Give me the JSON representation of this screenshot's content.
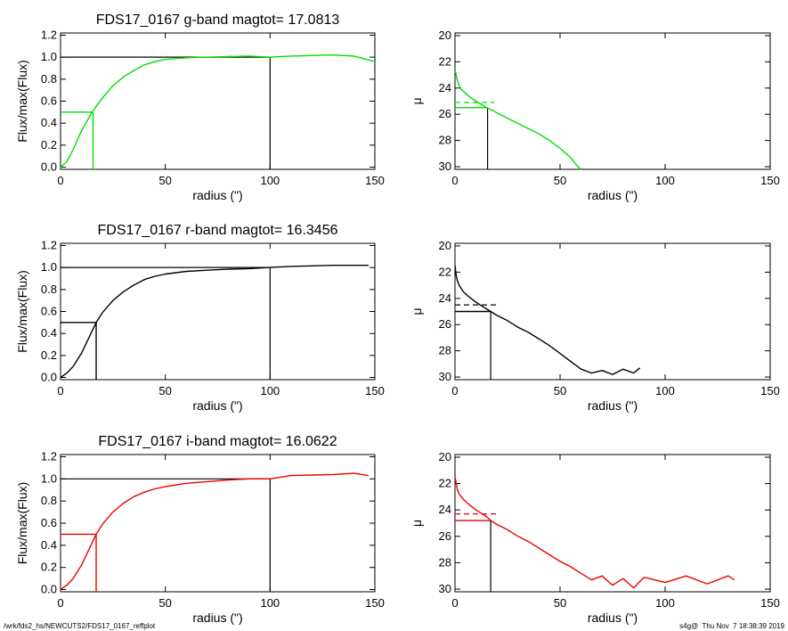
{
  "footer": {
    "path": "/wrk/fds2_hs/NEWCUTS2/FDS17_0167_reffplot",
    "stamp": "s4g@  Thu Nov  7 18:38:39 2019"
  },
  "colors": {
    "g": "#00e000",
    "r": "#000000",
    "i": "#ee0000"
  },
  "chart_data": [
    {
      "type": "line",
      "band": "g",
      "title": "FDS17_0167 g-band  magtot=     17.0813",
      "xlabel": "radius (\")",
      "ylabel": "Flux/max(Flux)",
      "xlim": [
        0,
        150
      ],
      "ylim": [
        -0.02,
        1.22
      ],
      "xticks": [
        0,
        50,
        100,
        150
      ],
      "yticks": [
        "0.0",
        "0.2",
        "0.4",
        "0.6",
        "0.8",
        "1.0",
        "1.2"
      ],
      "series": [
        {
          "x": [
            0,
            3,
            6,
            10,
            15,
            20,
            25,
            30,
            35,
            40,
            45,
            50,
            60,
            70,
            80,
            90,
            100,
            110,
            120,
            130,
            140,
            150
          ],
          "y": [
            0,
            0.05,
            0.16,
            0.33,
            0.5,
            0.63,
            0.74,
            0.82,
            0.88,
            0.93,
            0.96,
            0.98,
            0.995,
            1.0,
            1.005,
            1.01,
            1.0,
            1.01,
            1.015,
            1.02,
            1.01,
            0.96
          ]
        }
      ],
      "markers": {
        "r_half": 15.5,
        "half_level": 0.5,
        "r_max": 100,
        "max_level": 1.0
      }
    },
    {
      "type": "line",
      "band": "g",
      "title": "",
      "xlabel": "radius (\")",
      "ylabel": "μ",
      "xlim": [
        0,
        150
      ],
      "ylim": [
        30.2,
        19.8
      ],
      "xticks": [
        0,
        50,
        100,
        150
      ],
      "yticks": [
        "20",
        "22",
        "24",
        "26",
        "28",
        "30"
      ],
      "series": [
        {
          "x": [
            0,
            0.5,
            1,
            2,
            3,
            5,
            8,
            10,
            13,
            15,
            18,
            20,
            25,
            30,
            35,
            40,
            45,
            50,
            55,
            58,
            60
          ],
          "y": [
            22.7,
            22.9,
            23.4,
            23.8,
            24.1,
            24.4,
            24.8,
            25.0,
            25.3,
            25.5,
            25.7,
            25.9,
            26.3,
            26.7,
            27.1,
            27.5,
            28.0,
            28.6,
            29.3,
            29.9,
            30.2
          ]
        }
      ],
      "markers": {
        "r_half": 15.5,
        "mu_eff": 25.5,
        "mu_mean": 25.1
      }
    },
    {
      "type": "line",
      "band": "r",
      "title": "FDS17_0167 r-band  magtot=     16.3456",
      "xlabel": "radius (\")",
      "ylabel": "Flux/max(Flux)",
      "xlim": [
        0,
        150
      ],
      "ylim": [
        -0.02,
        1.22
      ],
      "xticks": [
        0,
        50,
        100,
        150
      ],
      "yticks": [
        "0.0",
        "0.2",
        "0.4",
        "0.6",
        "0.8",
        "1.0",
        "1.2"
      ],
      "series": [
        {
          "x": [
            0,
            3,
            6,
            10,
            17,
            20,
            25,
            30,
            35,
            40,
            45,
            50,
            60,
            70,
            80,
            90,
            100,
            110,
            120,
            130,
            140,
            147
          ],
          "y": [
            0,
            0.04,
            0.1,
            0.22,
            0.5,
            0.59,
            0.7,
            0.78,
            0.84,
            0.89,
            0.92,
            0.94,
            0.965,
            0.975,
            0.985,
            0.99,
            1.0,
            1.01,
            1.015,
            1.02,
            1.02,
            1.02
          ]
        }
      ],
      "markers": {
        "r_half": 17,
        "half_level": 0.5,
        "r_max": 100,
        "max_level": 1.0
      }
    },
    {
      "type": "line",
      "band": "r",
      "title": "",
      "xlabel": "radius (\")",
      "ylabel": "μ",
      "xlim": [
        0,
        150
      ],
      "ylim": [
        30.2,
        19.8
      ],
      "xticks": [
        0,
        50,
        100,
        150
      ],
      "yticks": [
        "20",
        "22",
        "24",
        "26",
        "28",
        "30"
      ],
      "series": [
        {
          "x": [
            0,
            0.5,
            1,
            2,
            4,
            6,
            10,
            15,
            17,
            20,
            25,
            30,
            35,
            40,
            45,
            50,
            55,
            60,
            65,
            70,
            75,
            80,
            85,
            88
          ],
          "y": [
            21.5,
            22.2,
            22.6,
            23.0,
            23.5,
            23.8,
            24.3,
            24.8,
            25.0,
            25.3,
            25.7,
            26.2,
            26.6,
            27.1,
            27.6,
            28.2,
            28.8,
            29.4,
            29.7,
            29.5,
            29.8,
            29.4,
            29.7,
            29.3
          ]
        }
      ],
      "markers": {
        "r_half": 17,
        "mu_eff": 25.0,
        "mu_mean": 24.5
      }
    },
    {
      "type": "line",
      "band": "i",
      "title": "FDS17_0167 i-band  magtot=     16.0622",
      "xlabel": "radius (\")",
      "ylabel": "Flux/max(Flux)",
      "xlim": [
        0,
        150
      ],
      "ylim": [
        -0.02,
        1.22
      ],
      "xticks": [
        0,
        50,
        100,
        150
      ],
      "yticks": [
        "0.0",
        "0.2",
        "0.4",
        "0.6",
        "0.8",
        "1.0",
        "1.2"
      ],
      "series": [
        {
          "x": [
            0,
            3,
            6,
            10,
            17,
            20,
            25,
            30,
            35,
            40,
            45,
            50,
            60,
            70,
            80,
            90,
            100,
            110,
            120,
            130,
            140,
            147
          ],
          "y": [
            0,
            0.04,
            0.1,
            0.22,
            0.5,
            0.59,
            0.7,
            0.78,
            0.84,
            0.88,
            0.91,
            0.93,
            0.96,
            0.975,
            0.99,
            1.0,
            1.0,
            1.03,
            1.035,
            1.04,
            1.05,
            1.03
          ]
        }
      ],
      "markers": {
        "r_half": 17,
        "half_level": 0.5,
        "r_max": 100,
        "max_level": 1.0
      }
    },
    {
      "type": "line",
      "band": "i",
      "title": "",
      "xlabel": "radius (\")",
      "ylabel": "μ",
      "xlim": [
        0,
        150
      ],
      "ylim": [
        30.2,
        19.8
      ],
      "xticks": [
        0,
        50,
        100,
        150
      ],
      "yticks": [
        "20",
        "22",
        "24",
        "26",
        "28",
        "30"
      ],
      "series": [
        {
          "x": [
            0,
            0.5,
            1,
            2,
            4,
            6,
            10,
            15,
            17,
            20,
            25,
            30,
            35,
            40,
            45,
            50,
            55,
            60,
            65,
            70,
            75,
            80,
            85,
            90,
            100,
            110,
            120,
            130,
            133
          ],
          "y": [
            21.5,
            21.9,
            22.4,
            22.8,
            23.2,
            23.5,
            24.0,
            24.5,
            24.8,
            25.1,
            25.5,
            26.0,
            26.4,
            26.9,
            27.4,
            27.9,
            28.3,
            28.8,
            29.3,
            29.0,
            29.7,
            29.2,
            29.9,
            29.1,
            29.5,
            29.0,
            29.6,
            29.0,
            29.3
          ]
        }
      ],
      "markers": {
        "r_half": 17,
        "mu_eff": 24.8,
        "mu_mean": 24.3
      }
    }
  ]
}
